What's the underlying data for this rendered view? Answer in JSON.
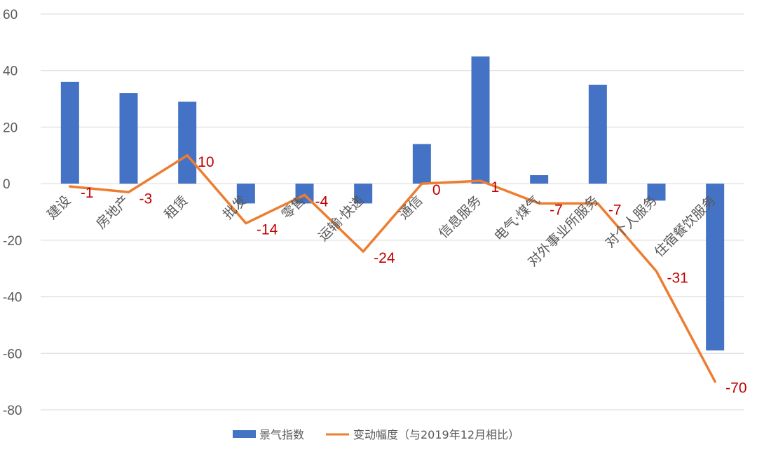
{
  "chart_data": {
    "type": "bar+line",
    "categories": [
      "建设",
      "房地产",
      "租赁",
      "批发",
      "零售",
      "运输·快递",
      "通信",
      "信息服务",
      "电气·煤气",
      "对外事业所服务",
      "对个人服务",
      "住宿餐饮服务"
    ],
    "series": [
      {
        "name": "景气指数",
        "type": "bar",
        "color": "#4472c4",
        "values": [
          36,
          32,
          29,
          -7,
          -7,
          -7,
          14,
          45,
          3,
          35,
          -6,
          -59
        ]
      },
      {
        "name": "变动幅度（与2019年12月相比）",
        "type": "line",
        "color": "#ed7d31",
        "values": [
          -1,
          -3,
          10,
          -14,
          -4,
          -24,
          0,
          1,
          -7,
          -7,
          -31,
          -70
        ]
      }
    ],
    "data_labels": [
      "-1",
      "-3",
      "10",
      "-14",
      "-4",
      "-24",
      "0",
      "1",
      "-7",
      "-7",
      "-31",
      "-70"
    ],
    "data_label_color": "#c00000",
    "ylim": [
      -80,
      60
    ],
    "yticks": [
      60,
      40,
      20,
      0,
      -20,
      -40,
      -60,
      -80
    ],
    "grid": true,
    "legend_position": "bottom",
    "title": "",
    "xlabel": "",
    "ylabel": ""
  }
}
